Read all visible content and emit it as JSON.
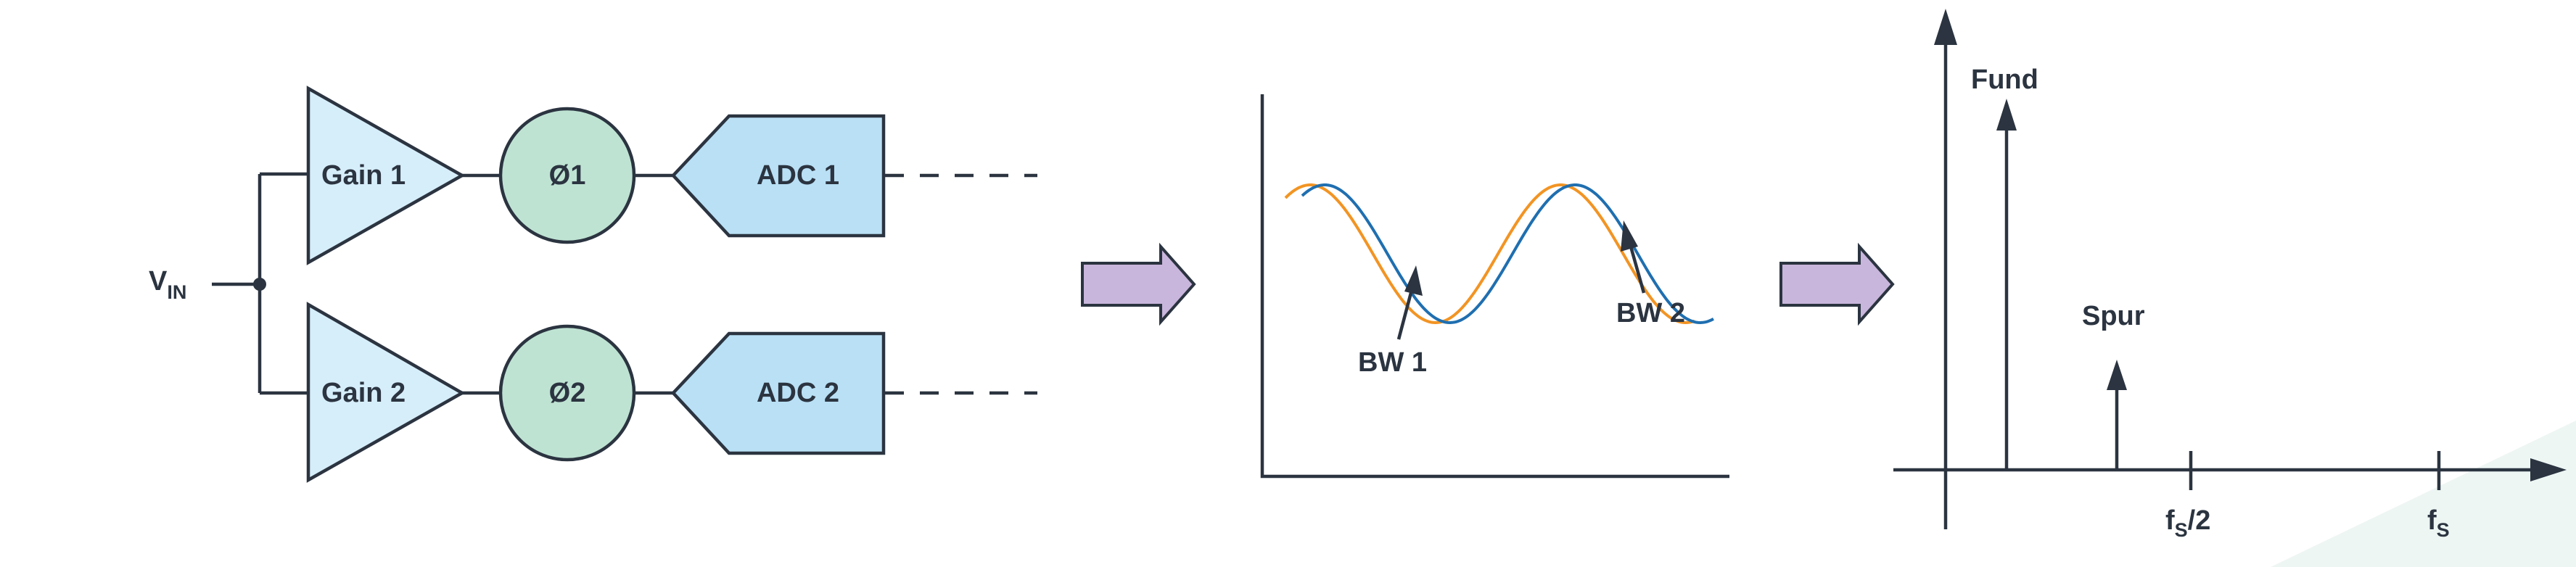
{
  "circuit": {
    "input": {
      "main": "V",
      "sub": "IN"
    },
    "channels": [
      {
        "gain": "Gain 1",
        "phase": "Ø1",
        "adc": "ADC 1"
      },
      {
        "gain": "Gain 2",
        "phase": "Ø2",
        "adc": "ADC 2"
      }
    ],
    "colors": {
      "gain_fill": "#d6eefa",
      "phase_fill": "#bfe3d3",
      "adc_fill": "#b9e0f5",
      "outline": "#2b3440"
    }
  },
  "flow_arrow_color": "#c9b6dc",
  "waveform": {
    "labels": [
      "BW 1",
      "BW 2"
    ],
    "colors": {
      "orange": "#f29423",
      "blue": "#1f6fb0"
    }
  },
  "spectrum": {
    "fund_label": "Fund",
    "spur_label": "Spur",
    "ticks": [
      {
        "main": "f",
        "sub": "S",
        "suffix": "/2"
      },
      {
        "main": "f",
        "sub": "S",
        "suffix": ""
      }
    ]
  }
}
